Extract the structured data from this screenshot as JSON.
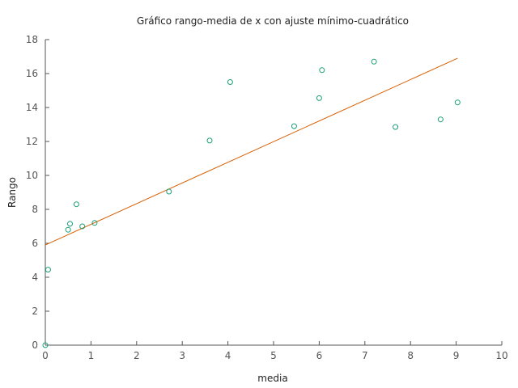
{
  "chart_data": {
    "type": "scatter",
    "title": "Gráfico rango-media de x con ajuste mínimo-cuadrático",
    "xlabel": "media",
    "ylabel": "Rango",
    "xlim": [
      0,
      10
    ],
    "ylim": [
      0,
      18
    ],
    "x_ticks": [
      "0",
      "1",
      "2",
      "3",
      "4",
      "5",
      "6",
      "7",
      "8",
      "9",
      "10"
    ],
    "y_ticks": [
      "0",
      "2",
      "4",
      "6",
      "8",
      "10",
      "12",
      "14",
      "16",
      "18"
    ],
    "grid": false,
    "series": [
      {
        "kind": "scatter",
        "marker": "open-circle",
        "color": "#1a9e77",
        "points": [
          {
            "x": 0.0,
            "y": 0.0
          },
          {
            "x": 0.06,
            "y": 4.45
          },
          {
            "x": 0.5,
            "y": 6.8
          },
          {
            "x": 0.54,
            "y": 7.15
          },
          {
            "x": 0.68,
            "y": 8.3
          },
          {
            "x": 0.81,
            "y": 7.0
          },
          {
            "x": 1.08,
            "y": 7.2
          },
          {
            "x": 2.71,
            "y": 9.05
          },
          {
            "x": 3.6,
            "y": 12.05
          },
          {
            "x": 4.05,
            "y": 15.5
          },
          {
            "x": 5.45,
            "y": 12.9
          },
          {
            "x": 6.0,
            "y": 14.55
          },
          {
            "x": 6.06,
            "y": 16.2
          },
          {
            "x": 7.2,
            "y": 16.7
          },
          {
            "x": 7.67,
            "y": 12.85
          },
          {
            "x": 8.66,
            "y": 13.3
          },
          {
            "x": 9.03,
            "y": 14.3
          }
        ]
      },
      {
        "kind": "line",
        "color": "#d95f02",
        "points": [
          {
            "x": 0.0,
            "y": 5.9
          },
          {
            "x": 9.03,
            "y": 16.9
          }
        ]
      }
    ]
  }
}
